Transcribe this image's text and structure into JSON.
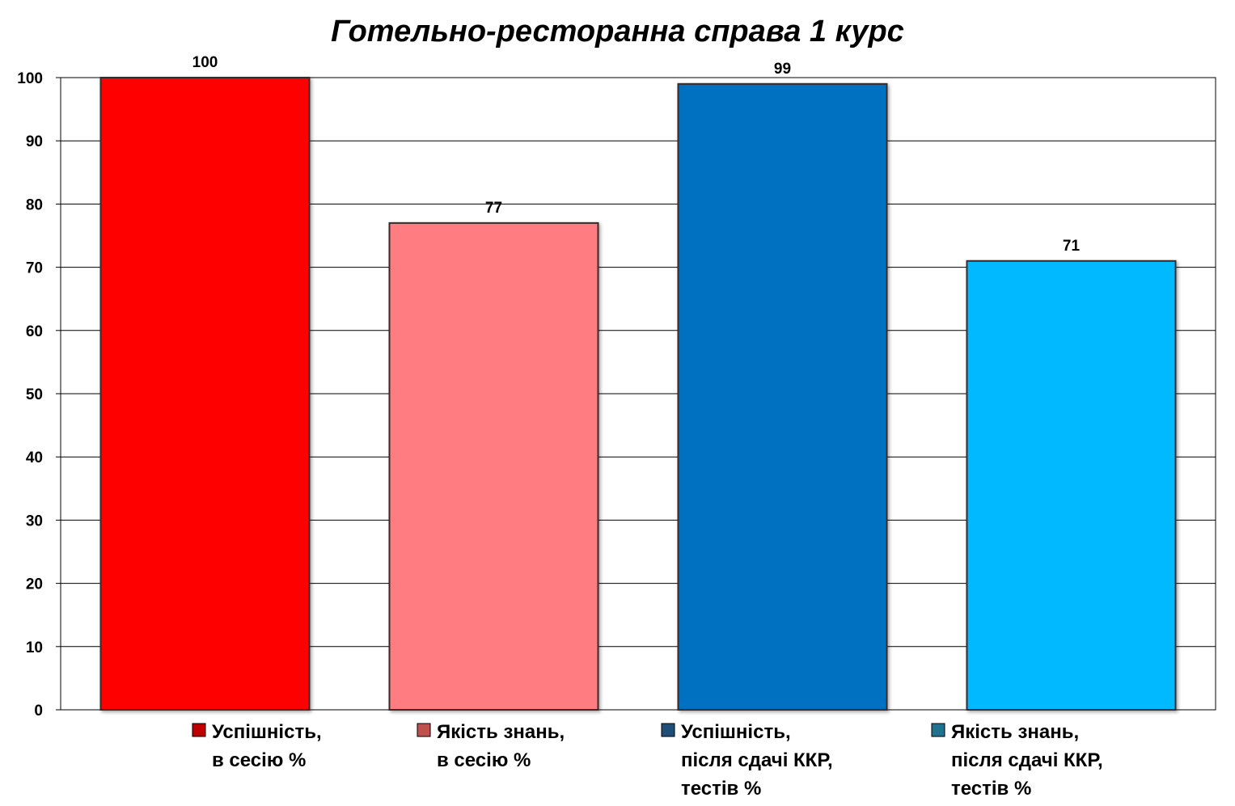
{
  "chart_data": {
    "type": "bar",
    "title": "Готельно-ресторанна справа 1 курс",
    "xlabel": "",
    "ylabel": "",
    "ylim": [
      0,
      100
    ],
    "yticks": [
      "0",
      "10",
      "20",
      "30",
      "40",
      "50",
      "60",
      "70",
      "80",
      "90",
      "100"
    ],
    "grid": true,
    "legend_position": "bottom",
    "series": [
      {
        "name": "Успішність, в сесію %",
        "legend_lines": [
          "Успішність,",
          "в сесію %"
        ],
        "value": 100,
        "color": "#ff0000",
        "marker_color": "#c00000"
      },
      {
        "name": "Якість знань, в сесію %",
        "legend_lines": [
          "Якість знань,",
          "в сесію %"
        ],
        "value": 77,
        "color": "#ff7c80",
        "marker_color": "#c0504d"
      },
      {
        "name": "Успішність, після сдачі ККР, тестів %",
        "legend_lines": [
          "Успішність,",
          "після сдачі ККР,",
          "тестів %"
        ],
        "value": 99,
        "color": "#0070c0",
        "marker_color": "#1f4e79"
      },
      {
        "name": "Якість знань, після сдачі ККР, тестів %",
        "legend_lines": [
          "Якість знань,",
          "після сдачі ККР,",
          "тестів %"
        ],
        "value": 71,
        "color": "#00b9ff",
        "marker_color": "#1f7391"
      }
    ]
  }
}
